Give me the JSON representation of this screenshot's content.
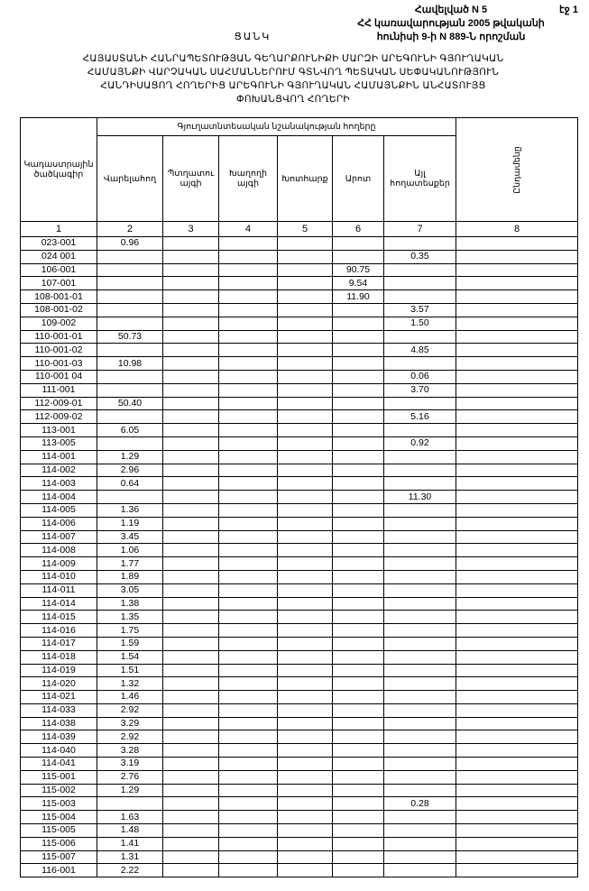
{
  "page_number": "էջ 1",
  "annex": {
    "line1": "Հավելված N 5",
    "line2": "ՀՀ կառավարության 2005 թվականի",
    "line3": "հունիսի 9-ի N 889-Ն որոշման"
  },
  "doc_title": "ՑԱՆԿ",
  "subject": {
    "line1": "ՀԱՅԱՍՏԱՆԻ ՀԱՆՐԱՊԵՏՈՒԹՅԱՆ ԳԵՂԱՐՔՈՒՆԻՔԻ ՄԱՐԶԻ ԱՐԵԳՈՒՆԻ ԳՅՈՒՂԱԿԱՆ",
    "line2": "ՀԱՄԱՅՆՔԻ ՎԱՐՉԱԿԱՆ ՍԱՀՄԱՆՆԵՐՈՒՄ ԳՏՆՎՈՂ ՊԵՏԱԿԱՆ ՍԵՓԱԿԱՆՈՒԹՅՈՒՆ",
    "line3": "ՀԱՆԴԻՍԱՑՈՂ ՀՈՂԵՐԻՑ ԱՐԵԳՈՒՆԻ ԳՅՈՒՂԱԿԱՆ ՀԱՄԱՅՆՔԻՆ ԱՆՀԱՏՈՒՅՑ",
    "line4": "ՓՈԽԱՆՑՎՈՂ ՀՈՂԵՐԻ"
  },
  "table": {
    "group_header": "Գյուղատնտեսական նշանակության հողերը",
    "headers": [
      "Կադաստրային ծածկագիր",
      "Վարելահող",
      "Պտղատու այգի",
      "Խաղողի այգի",
      "Խոտհարք",
      "Արոտ",
      "Այլ հողատեսքեր",
      "Ընդամենը"
    ],
    "numbers": [
      "1",
      "2",
      "3",
      "4",
      "5",
      "6",
      "7",
      "8"
    ],
    "rows": [
      [
        "023-001",
        "0.96",
        "",
        "",
        "",
        "",
        "",
        ""
      ],
      [
        "024 001",
        "",
        "",
        "",
        "",
        "",
        "0.35",
        ""
      ],
      [
        "106-001",
        "",
        "",
        "",
        "",
        "90.75",
        "",
        ""
      ],
      [
        "107-001",
        "",
        "",
        "",
        "",
        "9.54",
        "",
        ""
      ],
      [
        "108-001-01",
        "",
        "",
        "",
        "",
        "11.90",
        "",
        ""
      ],
      [
        "108-001-02",
        "",
        "",
        "",
        "",
        "",
        "3.57",
        ""
      ],
      [
        "109-002",
        "",
        "",
        "",
        "",
        "",
        "1.50",
        ""
      ],
      [
        "110-001-01",
        "50.73",
        "",
        "",
        "",
        "",
        "",
        ""
      ],
      [
        "110-001-02",
        "",
        "",
        "",
        "",
        "",
        "4.85",
        ""
      ],
      [
        "110-001-03",
        "10.98",
        "",
        "",
        "",
        "",
        "",
        ""
      ],
      [
        "110-001 04",
        "",
        "",
        "",
        "",
        "",
        "0.06",
        ""
      ],
      [
        "111-001",
        "",
        "",
        "",
        "",
        "",
        "3.70",
        ""
      ],
      [
        "112-009-01",
        "50.40",
        "",
        "",
        "",
        "",
        "",
        ""
      ],
      [
        "112-009-02",
        "",
        "",
        "",
        "",
        "",
        "5.16",
        ""
      ],
      [
        "113-001",
        "6.05",
        "",
        "",
        "",
        "",
        "",
        ""
      ],
      [
        "113-005",
        "",
        "",
        "",
        "",
        "",
        "0.92",
        ""
      ],
      [
        "114-001",
        "1.29",
        "",
        "",
        "",
        "",
        "",
        ""
      ],
      [
        "114-002",
        "2.96",
        "",
        "",
        "",
        "",
        "",
        ""
      ],
      [
        "114-003",
        "0.64",
        "",
        "",
        "",
        "",
        "",
        ""
      ],
      [
        "114-004",
        "",
        "",
        "",
        "",
        "",
        "11.30",
        ""
      ],
      [
        "114-005",
        "1.36",
        "",
        "",
        "",
        "",
        "",
        ""
      ],
      [
        "114-006",
        "1.19",
        "",
        "",
        "",
        "",
        "",
        ""
      ],
      [
        "114-007",
        "3.45",
        "",
        "",
        "",
        "",
        "",
        ""
      ],
      [
        "114-008",
        "1.06",
        "",
        "",
        "",
        "",
        "",
        ""
      ],
      [
        "114-009",
        "1.77",
        "",
        "",
        "",
        "",
        "",
        ""
      ],
      [
        "114-010",
        "1.89",
        "",
        "",
        "",
        "",
        "",
        ""
      ],
      [
        "114-011",
        "3.05",
        "",
        "",
        "",
        "",
        "",
        ""
      ],
      [
        "114-014",
        "1.38",
        "",
        "",
        "",
        "",
        "",
        ""
      ],
      [
        "114-015",
        "1.35",
        "",
        "",
        "",
        "",
        "",
        ""
      ],
      [
        "114-016",
        "1.75",
        "",
        "",
        "",
        "",
        "",
        ""
      ],
      [
        "114-017",
        "1.59",
        "",
        "",
        "",
        "",
        "",
        ""
      ],
      [
        "114-018",
        "1.54",
        "",
        "",
        "",
        "",
        "",
        ""
      ],
      [
        "114-019",
        "1.51",
        "",
        "",
        "",
        "",
        "",
        ""
      ],
      [
        "114-020",
        "1.32",
        "",
        "",
        "",
        "",
        "",
        ""
      ],
      [
        "114-021",
        "1.46",
        "",
        "",
        "",
        "",
        "",
        ""
      ],
      [
        "114-033",
        "2.92",
        "",
        "",
        "",
        "",
        "",
        ""
      ],
      [
        "114-038",
        "3.29",
        "",
        "",
        "",
        "",
        "",
        ""
      ],
      [
        "114-039",
        "2.92",
        "",
        "",
        "",
        "",
        "",
        ""
      ],
      [
        "114-040",
        "3.28",
        "",
        "",
        "",
        "",
        "",
        ""
      ],
      [
        "114-041",
        "3.19",
        "",
        "",
        "",
        "",
        "",
        ""
      ],
      [
        "115-001",
        "2.76",
        "",
        "",
        "",
        "",
        "",
        ""
      ],
      [
        "115-002",
        "1.29",
        "",
        "",
        "",
        "",
        "",
        ""
      ],
      [
        "115-003",
        "",
        "",
        "",
        "",
        "",
        "0.28",
        ""
      ],
      [
        "115-004",
        "1.63",
        "",
        "",
        "",
        "",
        "",
        ""
      ],
      [
        "115-005",
        "1.48",
        "",
        "",
        "",
        "",
        "",
        ""
      ],
      [
        "115-006",
        "1.41",
        "",
        "",
        "",
        "",
        "",
        ""
      ],
      [
        "115-007",
        "1.31",
        "",
        "",
        "",
        "",
        "",
        ""
      ],
      [
        "116-001",
        "2.22",
        "",
        "",
        "",
        "",
        "",
        ""
      ]
    ]
  }
}
